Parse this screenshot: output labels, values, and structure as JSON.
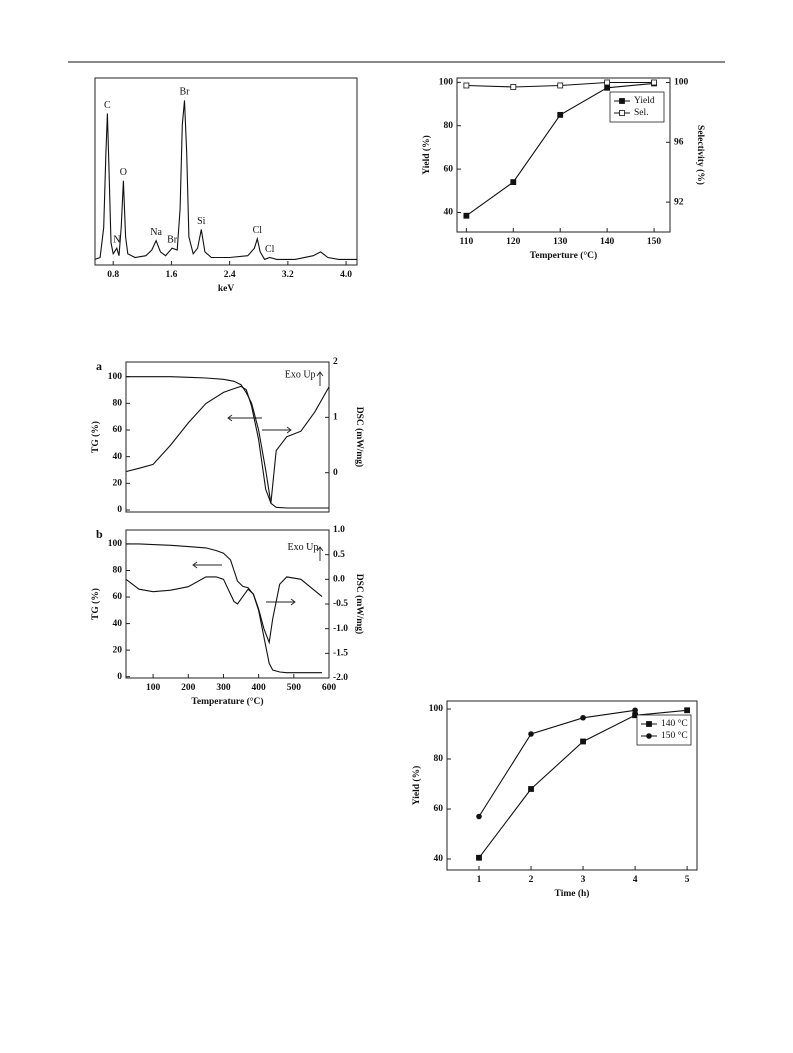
{
  "chart_data": [
    {
      "type": "line",
      "x_label": "keV",
      "x": [
        0.55,
        0.62,
        0.67,
        0.7,
        0.72,
        0.74,
        0.77,
        0.8,
        0.85,
        0.88,
        0.91,
        0.94,
        0.97,
        1.0,
        1.1,
        1.25,
        1.33,
        1.39,
        1.45,
        1.52,
        1.61,
        1.68,
        1.72,
        1.75,
        1.78,
        1.81,
        1.84,
        1.9,
        1.96,
        2.01,
        2.06,
        2.15,
        2.4,
        2.65,
        2.74,
        2.78,
        2.82,
        2.88,
        2.95,
        3.05,
        3.3,
        3.55,
        3.65,
        3.75,
        3.9,
        4.15
      ],
      "series": [
        {
          "color": "#111111",
          "values": [
            3,
            4,
            20,
            60,
            81,
            55,
            12,
            6,
            9,
            5,
            20,
            45,
            15,
            6,
            4,
            5,
            8,
            13,
            7,
            5,
            9,
            8,
            30,
            75,
            88,
            60,
            15,
            6,
            9,
            19,
            7,
            4,
            4,
            5,
            9,
            14,
            7,
            3,
            4,
            3,
            3,
            5,
            7,
            4,
            3,
            3
          ]
        }
      ],
      "xlim": [
        0.55,
        4.15
      ],
      "xticks": [
        0.8,
        1.6,
        2.4,
        3.2,
        {
          "value": 4.0,
          "label": "4.0"
        }
      ],
      "ylim": [
        0,
        100
      ],
      "annotations": [
        {
          "text": "C",
          "x": 0.72,
          "y": 81
        },
        {
          "text": "N",
          "x": 0.85,
          "y": 9
        },
        {
          "text": "O",
          "x": 0.94,
          "y": 45
        },
        {
          "text": "Na",
          "x": 1.39,
          "y": 13
        },
        {
          "text": "Br",
          "x": 1.61,
          "y": 9
        },
        {
          "text": "Br",
          "x": 1.78,
          "y": 88
        },
        {
          "text": "Si",
          "x": 2.01,
          "y": 19
        },
        {
          "text": "Cl",
          "x": 2.78,
          "y": 14
        },
        {
          "text": "Cl",
          "x": 2.95,
          "y": 4
        }
      ]
    },
    {
      "type": "line",
      "x_label": "Temperture (°C)",
      "y_label": "Yield (%)",
      "y2_label": "Selectivity (%)",
      "x": [
        110,
        120,
        130,
        140,
        150
      ],
      "series": [
        {
          "name": "Yield",
          "color": "#111111",
          "marker": "square",
          "values": [
            38.5,
            54,
            85,
            97.5,
            99.5
          ]
        },
        {
          "name": "Sel.",
          "color": "#111111",
          "marker": "open-square",
          "axis": "y2",
          "values": [
            99.8,
            99.7,
            99.8,
            100,
            100
          ]
        }
      ],
      "xlim": [
        108,
        153.4
      ],
      "xticks": [
        110,
        120,
        130,
        140,
        150
      ],
      "ylim": [
        31,
        102
      ],
      "yticks": [
        40,
        60,
        80,
        100
      ],
      "y2lim": [
        90,
        100.3
      ],
      "y2ticks": [
        92,
        96,
        100
      ],
      "legend": "upper right"
    },
    {
      "type": "line",
      "panel": "a",
      "y_label": "TG (%)",
      "y2_label": "DSC (mW/mg)",
      "x": [
        23,
        60,
        100,
        150,
        200,
        250,
        300,
        330,
        350,
        365,
        380,
        400,
        420,
        435,
        450,
        480,
        520,
        560,
        600
      ],
      "series": [
        {
          "color": "#111111",
          "values": [
            100,
            100,
            100,
            100,
            99.5,
            99,
            98,
            96.5,
            94,
            88,
            80,
            60,
            30,
            5,
            2,
            1.5,
            1.5,
            1.5,
            1.5
          ]
        },
        {
          "color": "#111111",
          "axis": "y2",
          "values": [
            0.02,
            0.08,
            0.15,
            0.5,
            0.9,
            1.25,
            1.45,
            1.52,
            1.56,
            1.5,
            1.2,
            0.6,
            -0.3,
            -0.55,
            0.4,
            0.65,
            0.75,
            1.1,
            1.55
          ]
        }
      ],
      "xlim": [
        23,
        600
      ],
      "ylim": [
        -1.5,
        111
      ],
      "yticks": [
        0,
        20,
        40,
        60,
        80,
        100
      ],
      "y2lim": [
        -0.71,
        2
      ],
      "y2ticks": [
        0,
        1,
        2
      ],
      "annotations": [
        {
          "text": "Exo Up",
          "x": 518,
          "y": 95
        }
      ]
    },
    {
      "type": "line",
      "panel": "b",
      "x_label": "Temperature (°C)",
      "y_label": "TG (%)",
      "y2_label": "DSC (mW/mg)",
      "x": [
        23,
        60,
        100,
        150,
        200,
        250,
        280,
        300,
        320,
        330,
        340,
        355,
        370,
        385,
        400,
        415,
        430,
        440,
        460,
        480,
        520,
        580
      ],
      "series": [
        {
          "color": "#111111",
          "values": [
            100,
            100,
            99.5,
            99,
            98,
            97,
            95,
            93,
            88,
            80,
            72,
            68,
            67,
            62,
            50,
            30,
            10,
            5,
            3.5,
            3,
            3,
            3
          ]
        },
        {
          "color": "#111111",
          "axis": "y2",
          "values": [
            0.0,
            -0.2,
            -0.25,
            -0.22,
            -0.15,
            0.05,
            0.05,
            0.0,
            -0.3,
            -0.45,
            -0.5,
            -0.35,
            -0.2,
            -0.3,
            -0.6,
            -1.0,
            -1.28,
            -0.8,
            -0.1,
            0.05,
            0.0,
            -0.35
          ]
        }
      ],
      "xlim": [
        23,
        600
      ],
      "xticks": [
        100,
        200,
        300,
        400,
        500,
        600
      ],
      "ylim": [
        -1,
        110.5
      ],
      "yticks": [
        0,
        20,
        40,
        60,
        80,
        100
      ],
      "y2lim": [
        -2,
        1
      ],
      "y2ticks": [
        {
          "value": 1.0,
          "label": "1.0"
        },
        0.5,
        {
          "value": 0,
          "label": "0.0"
        },
        -0.5,
        {
          "value": -1,
          "label": "-1.0"
        },
        -1.5,
        {
          "value": -2,
          "label": "-2.0"
        }
      ],
      "annotations": [
        {
          "text": "Exo Up",
          "x": 526,
          "y": 91
        }
      ]
    },
    {
      "type": "line",
      "x_label": "Time (h)",
      "y_label": "Yield (%)",
      "x": [
        1,
        2,
        3,
        4,
        5
      ],
      "series": [
        {
          "name": "140 °C",
          "color": "#111111",
          "marker": "square",
          "values": [
            40.5,
            68,
            87,
            97.5,
            99.5
          ]
        },
        {
          "name": "150 °C",
          "color": "#111111",
          "marker": "circle",
          "values": [
            57,
            90,
            96.5,
            99.5,
            null
          ]
        }
      ],
      "xlim": [
        0.385,
        5.19
      ],
      "xticks": [
        1,
        2,
        3,
        4,
        5
      ],
      "ylim": [
        35.6,
        103.2
      ],
      "yticks": [
        40,
        60,
        80,
        100
      ],
      "legend": "upper right"
    }
  ]
}
